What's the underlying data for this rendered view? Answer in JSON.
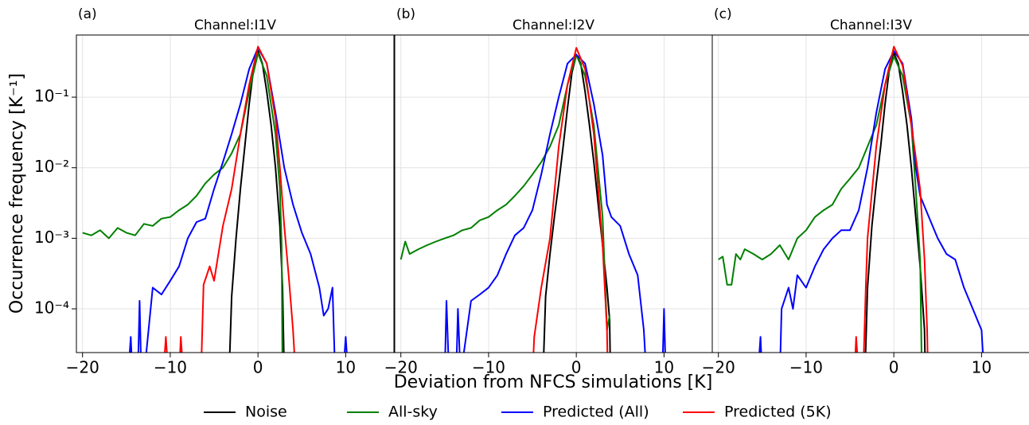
{
  "chart_data": [
    {
      "type": "line",
      "label": "(a)",
      "title": "Channel:I1V",
      "ylabel": "Occurrence frequency [K⁻¹]",
      "yscale": "log",
      "grid": true,
      "xlim": [
        -20.7,
        15.5
      ],
      "ylim": [
        2.4e-05,
        0.76
      ],
      "xticks": [
        {
          "value": -20,
          "label": "−20"
        },
        {
          "value": -10,
          "label": "−10"
        },
        0,
        10
      ],
      "yticks": [
        {
          "value": 0.0001,
          "label": "10⁻⁴"
        },
        {
          "value": 0.001,
          "label": "10⁻³"
        },
        {
          "value": 0.01,
          "label": "10⁻²"
        },
        {
          "value": 0.1,
          "label": "10⁻¹"
        }
      ],
      "series": [
        {
          "name": "Noise",
          "color": "#000000",
          "x": [
            -3.3,
            -3,
            -2.5,
            -2,
            -1.5,
            -1,
            -0.5,
            0,
            0.5,
            1,
            1.5,
            2,
            2.5,
            2.8,
            3
          ],
          "values": [
            0,
            0.00015,
            0.001,
            0.005,
            0.02,
            0.08,
            0.25,
            0.45,
            0.3,
            0.12,
            0.04,
            0.01,
            0.0015,
            0.0002,
            0
          ]
        },
        {
          "name": "All-sky",
          "color": "#008000",
          "x": [
            -20,
            -19,
            -18,
            -17,
            -16,
            -15,
            -14,
            -13,
            -12,
            -11,
            -10,
            -9,
            -8,
            -7,
            -6,
            -5,
            -4,
            -3,
            -2,
            -1,
            0,
            1,
            2,
            2.5,
            2.7,
            2.8
          ],
          "values": [
            0.0012,
            0.0011,
            0.0013,
            0.001,
            0.0014,
            0.0012,
            0.0011,
            0.0016,
            0.0015,
            0.0019,
            0.002,
            0.0025,
            0.003,
            0.004,
            0.006,
            0.008,
            0.01,
            0.016,
            0.03,
            0.12,
            0.42,
            0.2,
            0.03,
            0.005,
            0.0008,
            0
          ]
        },
        {
          "name": "Predicted (All)",
          "color": "#0000ff",
          "x": [
            -14.8,
            -14.5,
            -14.3,
            -13.7,
            -13.5,
            -13.3,
            -13,
            -12,
            -11,
            -10,
            -9,
            -8,
            -7,
            -6,
            -5,
            -4,
            -3,
            -2,
            -1,
            0,
            1,
            2,
            3,
            4,
            5,
            6,
            7,
            7.5,
            8,
            8.5,
            8.8,
            9.7,
            10,
            10.3
          ],
          "values": [
            0,
            4e-05,
            0,
            0,
            0.00013,
            0,
            0,
            0.0002,
            0.00016,
            0.00025,
            0.0004,
            0.001,
            0.0017,
            0.0019,
            0.005,
            0.012,
            0.03,
            0.08,
            0.25,
            0.5,
            0.3,
            0.06,
            0.01,
            0.003,
            0.0012,
            0.0006,
            0.0002,
            8e-05,
            0.0001,
            0.0002,
            0,
            0,
            4e-05,
            0
          ]
        },
        {
          "name": "Predicted (5K)",
          "color": "#ff0000",
          "x": [
            -10.8,
            -10.5,
            -10.2,
            -9,
            -8.8,
            -8.5,
            -6.5,
            -6.2,
            -5.5,
            -5,
            -4,
            -3,
            -2,
            -1,
            0,
            1,
            2,
            2.5,
            3,
            3.5,
            4,
            4.3
          ],
          "values": [
            0,
            4e-05,
            0,
            0,
            4e-05,
            0,
            0,
            0.00022,
            0.0004,
            0.00025,
            0.0015,
            0.005,
            0.03,
            0.15,
            0.52,
            0.3,
            0.05,
            0.01,
            0.0015,
            0.0003,
            5e-05,
            0
          ]
        }
      ]
    },
    {
      "type": "line",
      "label": "(b)",
      "title": "Channel:I2V",
      "xlabel": "Deviation from NFCS simulations [K]",
      "yscale": "log",
      "grid": true,
      "xlim": [
        -20.7,
        15.5
      ],
      "ylim": [
        2.4e-05,
        0.76
      ],
      "xticks": [
        {
          "value": -20,
          "label": "−20"
        },
        {
          "value": -10,
          "label": "−10"
        },
        0,
        10
      ],
      "series": [
        {
          "name": "Noise",
          "color": "#000000",
          "x": [
            -3.8,
            -3.5,
            -3,
            -2.5,
            -2,
            -1.5,
            -1,
            -0.5,
            0,
            0.5,
            1,
            1.5,
            2,
            2.5,
            3,
            3.5,
            3.8,
            3.9
          ],
          "values": [
            0,
            0.00015,
            0.0006,
            0.002,
            0.006,
            0.02,
            0.07,
            0.22,
            0.4,
            0.3,
            0.12,
            0.04,
            0.012,
            0.003,
            0.0008,
            0.0002,
            7e-05,
            0
          ]
        },
        {
          "name": "All-sky",
          "color": "#008000",
          "x": [
            -20,
            -19.5,
            -19,
            -18,
            -17,
            -16,
            -15,
            -14,
            -13,
            -12,
            -11,
            -10,
            -9,
            -8,
            -7,
            -6,
            -5,
            -4,
            -3,
            -2,
            -1,
            0,
            1,
            2,
            3,
            3.5,
            3.8
          ],
          "values": [
            0.0005,
            0.0009,
            0.0006,
            0.0007,
            0.0008,
            0.0009,
            0.001,
            0.0011,
            0.0013,
            0.0014,
            0.0018,
            0.002,
            0.0025,
            0.003,
            0.004,
            0.0055,
            0.008,
            0.012,
            0.02,
            0.04,
            0.15,
            0.4,
            0.2,
            0.04,
            0.002,
            5e-05,
            8e-05
          ]
        },
        {
          "name": "Predicted (All)",
          "color": "#0000ff",
          "x": [
            -15,
            -14.8,
            -14.5,
            -13.7,
            -13.5,
            -13.2,
            -12,
            -11,
            -10,
            -9,
            -8,
            -7,
            -6,
            -5,
            -4,
            -3,
            -2,
            -1,
            0,
            1,
            2,
            3,
            3.5,
            4,
            5,
            6,
            7,
            7.7,
            8,
            9.8,
            10,
            10.2
          ],
          "values": [
            0,
            0.00013,
            0,
            0,
            0.0001,
            0,
            0.00013,
            0.00016,
            0.0002,
            0.0003,
            0.0006,
            0.0011,
            0.0014,
            0.0025,
            0.008,
            0.03,
            0.1,
            0.3,
            0.4,
            0.3,
            0.08,
            0.015,
            0.003,
            0.002,
            0.0015,
            0.0006,
            0.0003,
            5e-05,
            0,
            0,
            0.0001,
            0
          ]
        },
        {
          "name": "Predicted (5K)",
          "color": "#ff0000",
          "x": [
            -5,
            -4.8,
            -4,
            -3,
            -2,
            -1,
            0,
            1,
            2,
            2.5,
            3,
            3.5,
            3.6
          ],
          "values": [
            0,
            4e-05,
            0.0002,
            0.001,
            0.02,
            0.15,
            0.5,
            0.25,
            0.03,
            0.005,
            0.0008,
            5e-05,
            0
          ]
        }
      ]
    },
    {
      "type": "line",
      "label": "(c)",
      "title": "Channel:I3V",
      "yscale": "log",
      "grid": true,
      "xlim": [
        -20.7,
        15.5
      ],
      "ylim": [
        2.4e-05,
        0.76
      ],
      "xticks": [
        {
          "value": -20,
          "label": "−20"
        },
        {
          "value": -10,
          "label": "−10"
        },
        0,
        10
      ],
      "series": [
        {
          "name": "Noise",
          "color": "#000000",
          "x": [
            -3.3,
            -3,
            -2.5,
            -2,
            -1.5,
            -1,
            -0.5,
            0,
            0.5,
            1,
            1.5,
            2,
            2.5,
            3,
            3.5,
            3.6
          ],
          "values": [
            0,
            0.0002,
            0.0015,
            0.006,
            0.02,
            0.08,
            0.25,
            0.42,
            0.3,
            0.12,
            0.04,
            0.01,
            0.002,
            0.0004,
            5e-05,
            0
          ]
        },
        {
          "name": "All-sky",
          "color": "#008000",
          "x": [
            -20,
            -19.5,
            -19,
            -18.5,
            -18,
            -17.5,
            -17,
            -16,
            -15,
            -14,
            -13,
            -12,
            -11,
            -10,
            -9,
            -8,
            -7,
            -6,
            -5,
            -4,
            -3,
            -2,
            -1,
            0,
            1,
            2,
            2.5,
            3,
            3.2
          ],
          "values": [
            0.0005,
            0.00055,
            0.00022,
            0.00022,
            0.0006,
            0.0005,
            0.0007,
            0.0006,
            0.0005,
            0.0006,
            0.0008,
            0.0005,
            0.001,
            0.0013,
            0.002,
            0.0025,
            0.003,
            0.005,
            0.007,
            0.01,
            0.02,
            0.04,
            0.15,
            0.38,
            0.2,
            0.04,
            0.005,
            0.0005,
            0
          ]
        },
        {
          "name": "Predicted (All)",
          "color": "#0000ff",
          "x": [
            -15.5,
            -15.2,
            -15,
            -13,
            -12.8,
            -12,
            -11.5,
            -11,
            -10,
            -9,
            -8,
            -7,
            -6,
            -5,
            -4,
            -3,
            -2,
            -1,
            0,
            1,
            2,
            2.5,
            3,
            4,
            5,
            6,
            7,
            8,
            9,
            10,
            10.3
          ],
          "values": [
            0,
            4e-05,
            0,
            0,
            0.0001,
            0.0002,
            0.0001,
            0.0003,
            0.0002,
            0.0004,
            0.0007,
            0.001,
            0.0013,
            0.0013,
            0.0025,
            0.01,
            0.06,
            0.25,
            0.45,
            0.3,
            0.05,
            0.01,
            0.004,
            0.002,
            0.001,
            0.0006,
            0.0005,
            0.0002,
            0.0001,
            5e-05,
            0
          ]
        },
        {
          "name": "Predicted (5K)",
          "color": "#ff0000",
          "x": [
            -4.5,
            -4.3,
            -4,
            -3.5,
            -3.2,
            -3,
            -2,
            -1,
            0,
            1,
            2,
            3,
            3.5,
            3.8,
            3.9
          ],
          "values": [
            0,
            4e-05,
            0,
            0,
            0.0002,
            0.001,
            0.02,
            0.15,
            0.52,
            0.28,
            0.04,
            0.005,
            0.0005,
            5e-05,
            0
          ]
        }
      ]
    }
  ]
}
